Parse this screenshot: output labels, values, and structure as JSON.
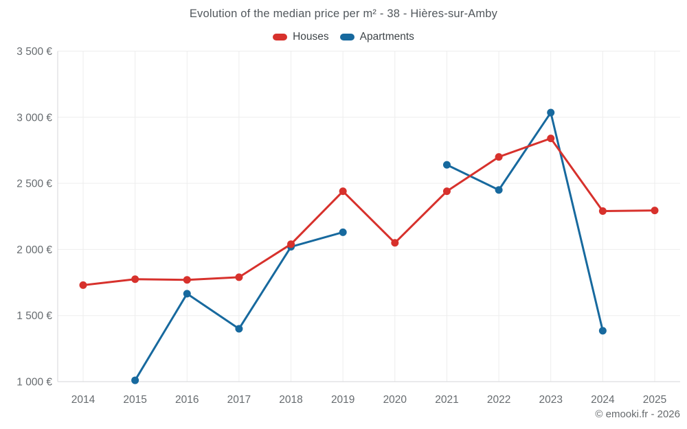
{
  "footer": {
    "copyright": "© emooki.fr - 2026"
  },
  "chart_data": {
    "type": "line",
    "title": "Evolution of the median price per m² - 38 - Hières-sur-Amby",
    "categories": [
      "2014",
      "2015",
      "2016",
      "2017",
      "2018",
      "2019",
      "2020",
      "2021",
      "2022",
      "2023",
      "2024",
      "2025"
    ],
    "series": [
      {
        "name": "Houses",
        "color": "#d7312c",
        "values": [
          1730,
          1775,
          1770,
          1790,
          2040,
          2440,
          2050,
          2440,
          2700,
          2840,
          2290,
          2295
        ]
      },
      {
        "name": "Apartments",
        "color": "#17699e",
        "values": [
          null,
          1010,
          1665,
          1400,
          2020,
          2130,
          null,
          2640,
          2450,
          3035,
          1385,
          null
        ]
      }
    ],
    "xlabel": "",
    "ylabel": "",
    "ylim": [
      1000,
      3500
    ],
    "yticks": [
      1000,
      1500,
      2000,
      2500,
      3000,
      3500
    ],
    "ytick_labels": [
      "1 000 €",
      "1 500 €",
      "2 000 €",
      "2 500 €",
      "3 000 €",
      "3 500 €"
    ],
    "grid": true,
    "legend_position": "top",
    "marker": "circle"
  },
  "colors": {
    "grid": "#ededed",
    "axis": "#d4d6d8",
    "tick_text": "#666b6f",
    "title_text": "#51575c",
    "legend_text": "#3f4549",
    "footer_text": "#666a6d",
    "background": "#ffffff"
  }
}
